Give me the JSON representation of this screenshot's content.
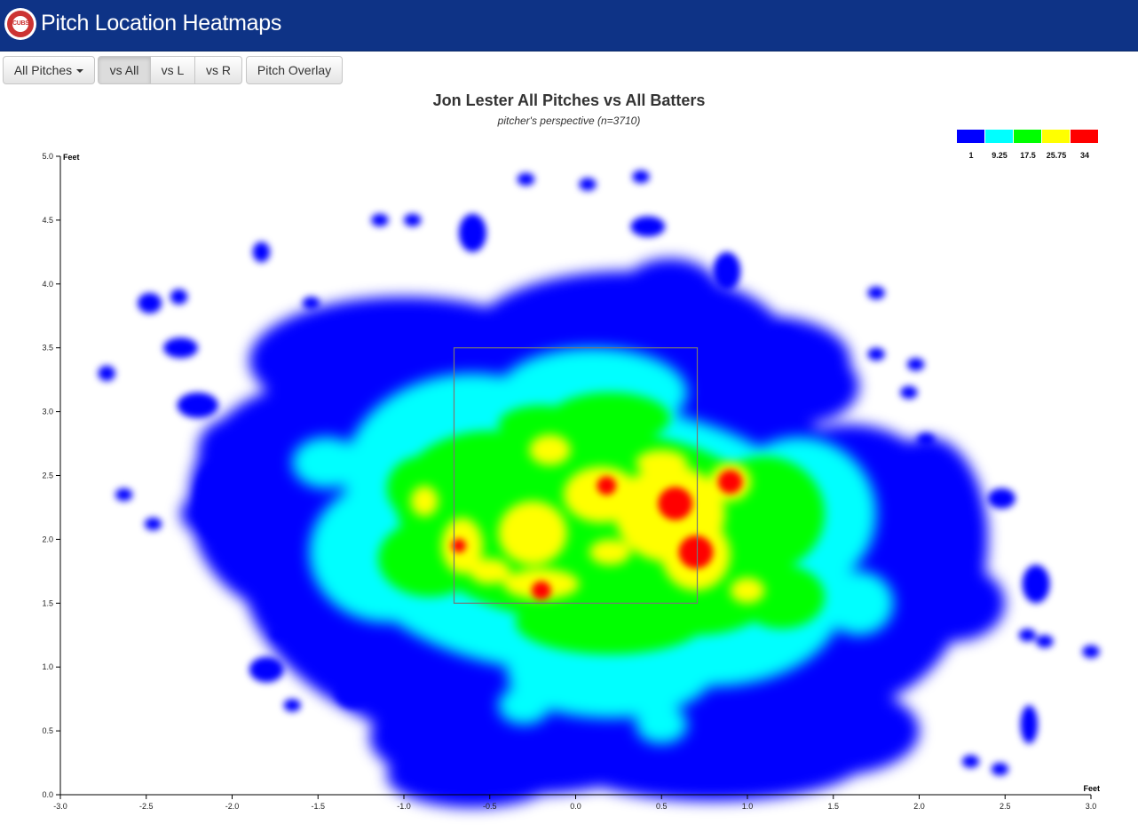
{
  "header": {
    "title": "Pitch Location Heatmaps",
    "logo_text": "CUBS"
  },
  "toolbar": {
    "pitch_type_label": "All Pitches",
    "vs_all_label": "vs All",
    "vs_l_label": "vs L",
    "vs_r_label": "vs R",
    "overlay_label": "Pitch Overlay",
    "active_filter": "vs All"
  },
  "chart_data": {
    "type": "heatmap",
    "title": "Jon Lester All Pitches vs All Batters",
    "subtitle": "pitcher's perspective (n=3710)",
    "xlabel": "Feet",
    "ylabel": "Feet",
    "xlim": [
      -3.0,
      3.0
    ],
    "ylim": [
      0.0,
      5.0
    ],
    "x_ticks": [
      "-3.0",
      "-2.5",
      "-2.0",
      "-1.5",
      "-1.0",
      "-0.5",
      "0.0",
      "0.5",
      "1.0",
      "1.5",
      "2.0",
      "2.5",
      "3.0"
    ],
    "y_ticks": [
      "0.0",
      "0.5",
      "1.0",
      "1.5",
      "2.0",
      "2.5",
      "3.0",
      "3.5",
      "4.0",
      "4.5",
      "5.0"
    ],
    "strike_zone": {
      "x": [
        -0.708,
        0.708
      ],
      "y": [
        1.5,
        3.5
      ]
    },
    "legend": {
      "placement": "top-right",
      "levels": [
        {
          "label": "1",
          "color": "#0000ff"
        },
        {
          "label": "9.25",
          "color": "#00ffff"
        },
        {
          "label": "17.5",
          "color": "#00ff00"
        },
        {
          "label": "25.75",
          "color": "#ffff00"
        },
        {
          "label": "34",
          "color": "#ff0000"
        }
      ]
    },
    "density_peaks": [
      {
        "x": 0.58,
        "y": 2.28,
        "value": 34
      },
      {
        "x": 0.7,
        "y": 1.9,
        "value": 34
      },
      {
        "x": 0.9,
        "y": 2.45,
        "value": 30
      },
      {
        "x": 0.18,
        "y": 2.42,
        "value": 28
      },
      {
        "x": -0.2,
        "y": 1.6,
        "value": 28
      },
      {
        "x": -0.68,
        "y": 1.95,
        "value": 26
      },
      {
        "x": -0.28,
        "y": 2.08,
        "value": 25
      },
      {
        "x": -0.15,
        "y": 2.75,
        "value": 22
      },
      {
        "x": 1.0,
        "y": 1.6,
        "value": 22
      },
      {
        "x": -0.88,
        "y": 2.3,
        "value": 22
      },
      {
        "x": 0.4,
        "y": 2.1,
        "value": 22
      }
    ]
  }
}
